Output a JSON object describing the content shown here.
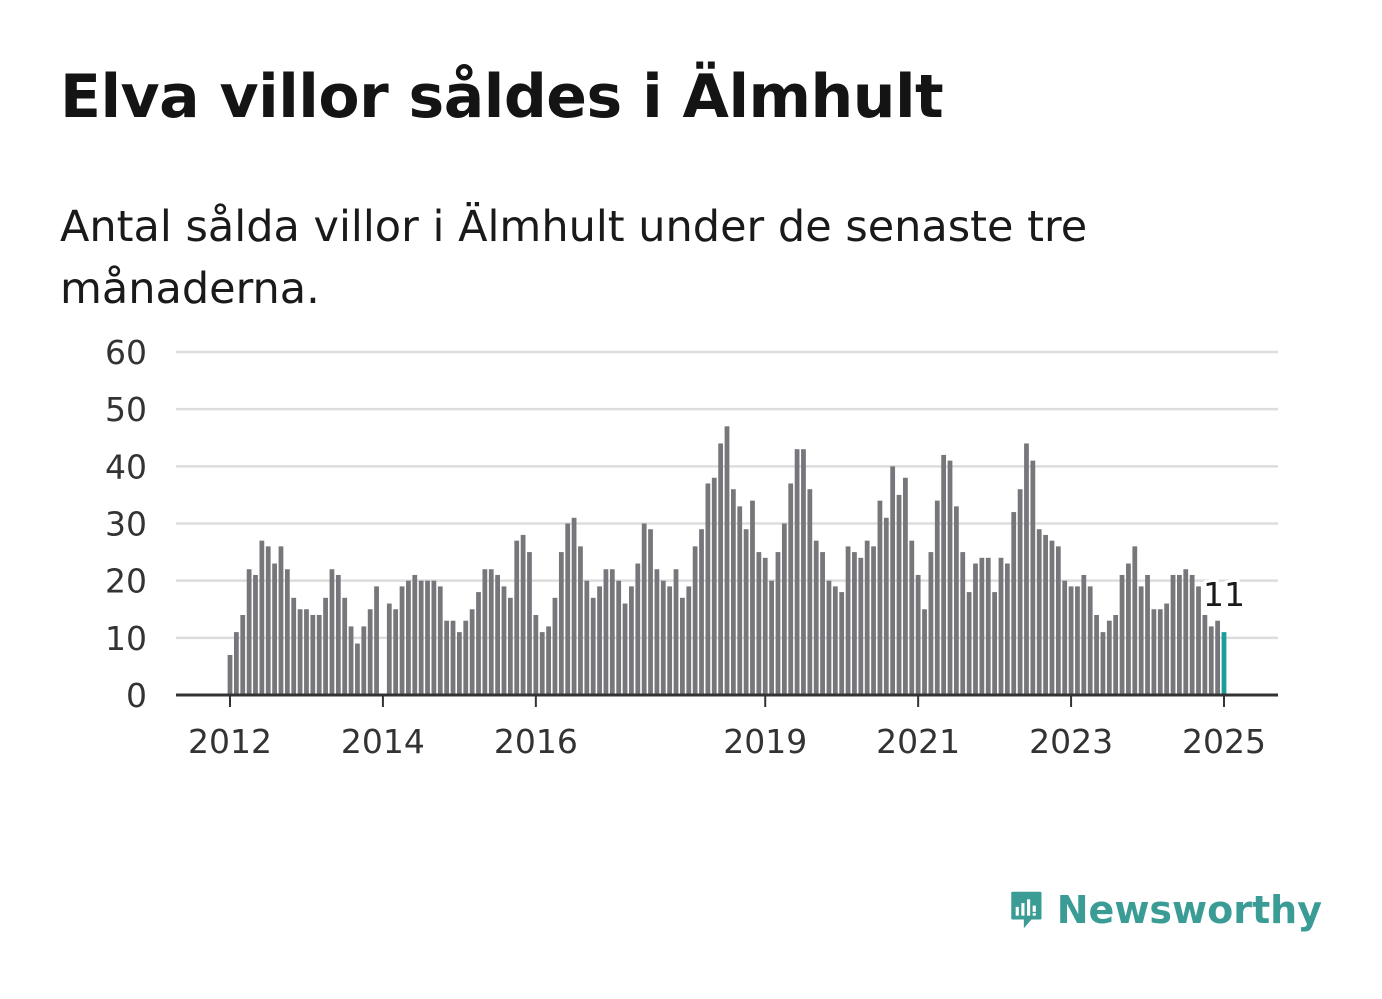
{
  "title": "Elva villor såldes i Älmhult",
  "subtitle": "Antal sålda villor i Älmhult under de senaste tre månaderna.",
  "brand": {
    "name": "Newsworthy",
    "color": "#3a9c95",
    "icon": "newsworthy-logo-icon"
  },
  "colors": {
    "bar": "#77767b",
    "highlight": "#1b9e9a",
    "grid": "#dddddd",
    "axis": "#333333"
  },
  "chart_data": {
    "type": "bar",
    "title": "",
    "xlabel": "",
    "ylabel": "",
    "ylim": [
      0,
      60
    ],
    "yticks": [
      0,
      10,
      20,
      30,
      40,
      50,
      60
    ],
    "grid": true,
    "x_start": "2012-01",
    "x_end": "2025-01",
    "x_tick_labels": [
      "2012",
      "2014",
      "2016",
      "2019",
      "2021",
      "2023",
      "2025"
    ],
    "x_tick_months": [
      "2012-01",
      "2014-01",
      "2016-01",
      "2019-01",
      "2021-01",
      "2023-01",
      "2025-01"
    ],
    "highlight_last": true,
    "value_label": "11",
    "values": [
      7,
      11,
      14,
      22,
      21,
      27,
      26,
      23,
      26,
      22,
      17,
      15,
      15,
      14,
      14,
      17,
      22,
      21,
      17,
      12,
      9,
      12,
      15,
      19,
      0,
      16,
      15,
      19,
      20,
      21,
      20,
      20,
      20,
      19,
      13,
      13,
      11,
      13,
      15,
      18,
      22,
      22,
      21,
      19,
      17,
      27,
      28,
      25,
      14,
      11,
      12,
      17,
      25,
      30,
      31,
      26,
      20,
      17,
      19,
      22,
      22,
      20,
      16,
      19,
      23,
      30,
      29,
      22,
      20,
      19,
      22,
      17,
      19,
      26,
      29,
      37,
      38,
      44,
      47,
      36,
      33,
      29,
      34,
      25,
      24,
      20,
      25,
      30,
      37,
      43,
      43,
      36,
      27,
      25,
      20,
      19,
      18,
      26,
      25,
      24,
      27,
      26,
      34,
      31,
      40,
      35,
      38,
      27,
      21,
      15,
      25,
      34,
      42,
      41,
      33,
      25,
      18,
      23,
      24,
      24,
      18,
      24,
      23,
      32,
      36,
      44,
      41,
      29,
      28,
      27,
      26,
      20,
      19,
      19,
      21,
      19,
      14,
      11,
      13,
      14,
      21,
      23,
      26,
      19,
      21,
      15,
      15,
      16,
      21,
      21,
      22,
      21,
      19,
      14,
      12,
      13,
      11
    ]
  }
}
